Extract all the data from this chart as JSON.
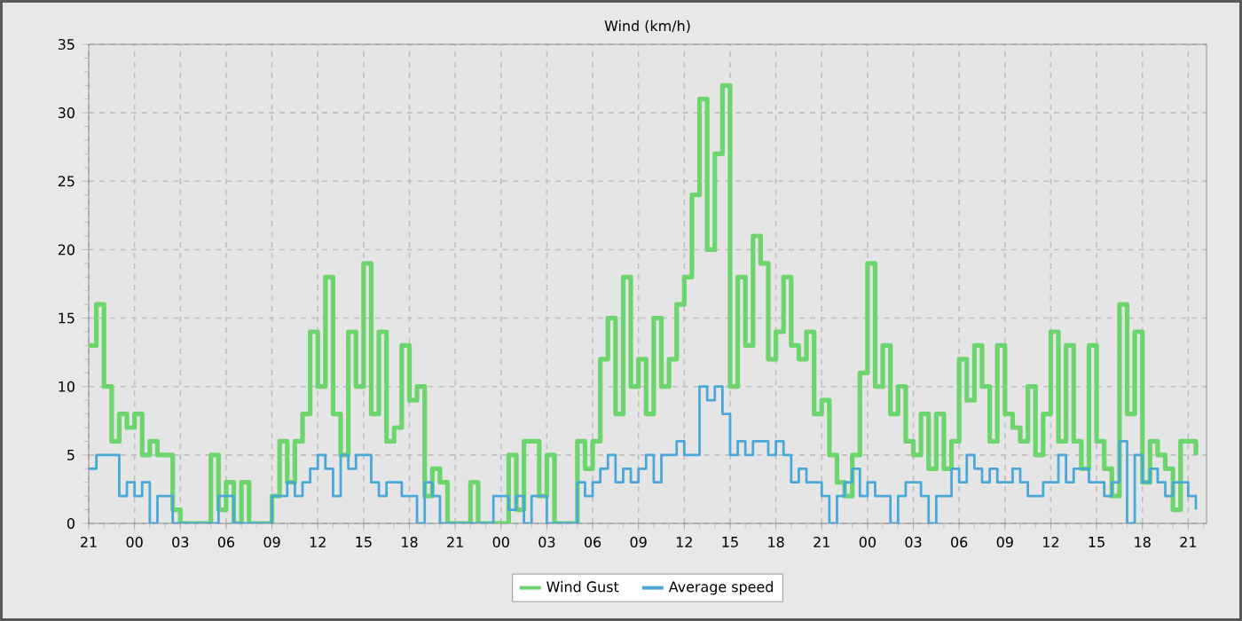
{
  "chart_data": {
    "type": "step",
    "title": "Wind (km/h)",
    "categories": [
      "21",
      null,
      null,
      null,
      null,
      null,
      "00",
      null,
      null,
      null,
      null,
      null,
      "03",
      null,
      null,
      null,
      null,
      null,
      "06",
      null,
      null,
      null,
      null,
      null,
      "09",
      null,
      null,
      null,
      null,
      null,
      "12",
      null,
      null,
      null,
      null,
      null,
      "15",
      null,
      null,
      null,
      null,
      null,
      "18",
      null,
      null,
      null,
      null,
      null,
      "21",
      null,
      null,
      null,
      null,
      null,
      "00",
      null,
      null,
      null,
      null,
      null,
      "03",
      null,
      null,
      null,
      null,
      null,
      "06",
      null,
      null,
      null,
      null,
      null,
      "09",
      null,
      null,
      null,
      null,
      null,
      "12",
      null,
      null,
      null,
      null,
      null,
      "15",
      null,
      null,
      null,
      null,
      null,
      "18",
      null,
      null,
      null,
      null,
      null,
      "21",
      null,
      null,
      null,
      null,
      null,
      "00",
      null,
      null,
      null,
      null,
      null,
      "03",
      null,
      null,
      null,
      null,
      null,
      "06",
      null,
      null,
      null,
      null,
      null,
      "09",
      null,
      null,
      null,
      null,
      null,
      "12",
      null,
      null,
      null,
      null,
      null,
      "15",
      null,
      null,
      null,
      null,
      null,
      "18",
      null,
      null,
      null,
      null,
      null,
      "21",
      null,
      null
    ],
    "ylim": [
      0,
      35
    ],
    "yticks": [
      0,
      5,
      10,
      15,
      20,
      25,
      30,
      35
    ],
    "grid": true,
    "legend": "bottom",
    "series": [
      {
        "name": "Wind Gust",
        "color": "#6dd56d",
        "values": [
          13,
          16,
          10,
          6,
          8,
          7,
          8,
          5,
          6,
          5,
          5,
          1,
          0,
          0,
          0,
          0,
          5,
          1,
          3,
          0,
          3,
          0,
          0,
          0,
          2,
          6,
          3,
          6,
          8,
          14,
          10,
          18,
          8,
          5,
          14,
          10,
          19,
          8,
          14,
          6,
          7,
          13,
          9,
          10,
          2,
          4,
          3,
          0,
          0,
          0,
          3,
          0,
          0,
          0,
          0,
          5,
          1,
          6,
          6,
          2,
          5,
          0,
          0,
          0,
          6,
          4,
          6,
          12,
          15,
          8,
          18,
          10,
          12,
          8,
          15,
          10,
          12,
          16,
          18,
          24,
          31,
          20,
          27,
          32,
          10,
          18,
          13,
          21,
          19,
          12,
          14,
          18,
          13,
          12,
          14,
          8,
          9,
          5,
          3,
          2,
          5,
          11,
          19,
          10,
          13,
          8,
          10,
          6,
          5,
          8,
          4,
          8,
          4,
          6,
          12,
          9,
          13,
          10,
          6,
          13,
          8,
          7,
          6,
          10,
          5,
          8,
          14,
          6,
          13,
          6,
          4,
          13,
          6,
          4,
          2,
          16,
          8,
          14,
          3,
          6,
          5,
          4,
          1,
          6,
          6,
          5,
          null
        ]
      },
      {
        "name": "Average speed",
        "color": "#4aa8d8",
        "values": [
          4,
          5,
          5,
          5,
          2,
          3,
          2,
          3,
          0,
          2,
          2,
          0,
          0,
          0,
          0,
          0,
          0,
          2,
          2,
          0,
          0,
          0,
          0,
          0,
          2,
          2,
          3,
          2,
          3,
          4,
          5,
          4,
          2,
          5,
          4,
          5,
          5,
          3,
          2,
          3,
          3,
          2,
          2,
          0,
          3,
          2,
          0,
          0,
          0,
          0,
          0,
          0,
          0,
          2,
          2,
          1,
          2,
          0,
          2,
          2,
          0,
          0,
          0,
          0,
          3,
          2,
          3,
          4,
          5,
          3,
          4,
          3,
          4,
          5,
          3,
          5,
          5,
          6,
          5,
          5,
          10,
          9,
          10,
          8,
          5,
          6,
          5,
          6,
          6,
          5,
          6,
          5,
          3,
          4,
          3,
          3,
          2,
          0,
          2,
          3,
          4,
          2,
          3,
          2,
          2,
          0,
          2,
          3,
          3,
          2,
          0,
          2,
          2,
          4,
          3,
          5,
          4,
          3,
          4,
          3,
          3,
          4,
          3,
          2,
          2,
          3,
          3,
          5,
          3,
          4,
          4,
          3,
          3,
          2,
          3,
          6,
          0,
          5,
          3,
          4,
          3,
          2,
          3,
          3,
          2,
          1,
          null
        ]
      }
    ]
  }
}
